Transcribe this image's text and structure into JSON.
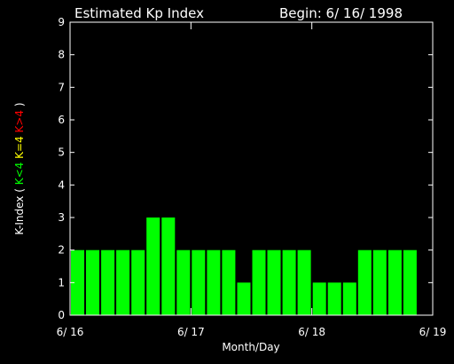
{
  "header": {
    "title": "Estimated Kp Index",
    "begin": "Begin: 6/ 16/ 1998"
  },
  "colors": {
    "background": "#000000",
    "axes": "#ffffff",
    "bar": "#00ff00",
    "bar_outline": "#000000",
    "label_low": "#00ff00",
    "label_mid": "#ffff00",
    "label_high": "#ff0000"
  },
  "chart_data": {
    "type": "bar",
    "title": "Estimated Kp Index",
    "xlabel": "Month/Day",
    "ylabel": {
      "prefix": "K-Index (",
      "low": "K<4",
      "mid": "K=4",
      "high": "K>4",
      "suffix": ")"
    },
    "ylim": [
      0,
      9
    ],
    "yticks": [
      "0",
      "1",
      "2",
      "3",
      "4",
      "5",
      "6",
      "7",
      "8",
      "9"
    ],
    "xticks": [
      "6/ 16",
      "6/ 17",
      "6/ 18",
      "6/ 19"
    ],
    "bar_interval_hours": 3,
    "values": [
      2,
      2,
      2,
      2,
      2,
      3,
      3,
      2,
      2,
      2,
      2,
      1,
      2,
      2,
      2,
      2,
      1,
      1,
      1,
      2,
      2,
      2,
      2
    ]
  }
}
